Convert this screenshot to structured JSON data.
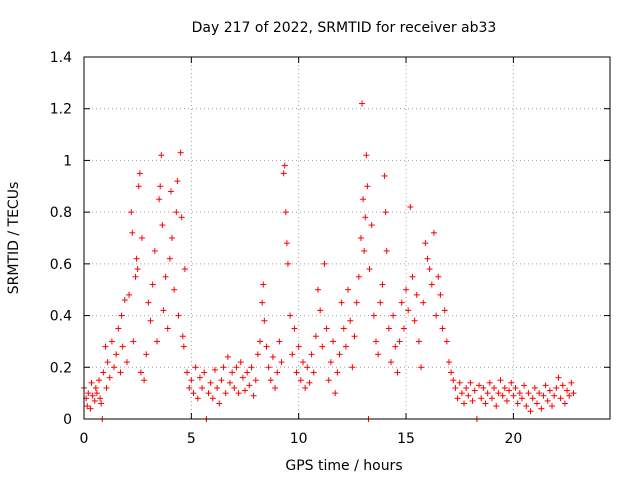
{
  "chart_data": {
    "type": "scatter",
    "title": "Day 217 of 2022, SRMTID for receiver ab33",
    "xlabel": "GPS time / hours",
    "ylabel": "SRMTID / TECUs",
    "xlim": [
      0,
      24.5
    ],
    "ylim": [
      0,
      1.4
    ],
    "xticks": [
      0,
      5,
      10,
      15,
      20
    ],
    "xtick_labels": [
      "0",
      "5",
      "10",
      "15",
      "20"
    ],
    "yticks": [
      0,
      0.2,
      0.4,
      0.6,
      0.8,
      1.0,
      1.2,
      1.4
    ],
    "ytick_labels": [
      "0",
      "0.2",
      "0.4",
      "0.6",
      "0.8",
      "1",
      "1.2",
      "1.4"
    ],
    "grid": true,
    "marker": "+",
    "color": "#ff0000",
    "series": [
      {
        "name": "SRMTID",
        "points": [
          [
            0.0,
            0.12
          ],
          [
            0.1,
            0.08
          ],
          [
            0.15,
            0.05
          ],
          [
            0.2,
            0.1
          ],
          [
            0.3,
            0.04
          ],
          [
            0.35,
            0.14
          ],
          [
            0.4,
            0.09
          ],
          [
            0.5,
            0.07
          ],
          [
            0.55,
            0.12
          ],
          [
            0.6,
            0.1
          ],
          [
            0.7,
            0.15
          ],
          [
            0.75,
            0.08
          ],
          [
            0.8,
            0.06
          ],
          [
            0.85,
            0.0
          ],
          [
            0.9,
            0.18
          ],
          [
            1.0,
            0.28
          ],
          [
            1.05,
            0.12
          ],
          [
            1.1,
            0.22
          ],
          [
            1.2,
            0.16
          ],
          [
            1.3,
            0.3
          ],
          [
            1.4,
            0.2
          ],
          [
            1.5,
            0.25
          ],
          [
            1.6,
            0.35
          ],
          [
            1.7,
            0.18
          ],
          [
            1.75,
            0.4
          ],
          [
            1.8,
            0.28
          ],
          [
            1.9,
            0.46
          ],
          [
            2.0,
            0.22
          ],
          [
            2.1,
            0.48
          ],
          [
            2.2,
            0.8
          ],
          [
            2.25,
            0.72
          ],
          [
            2.3,
            0.3
          ],
          [
            2.4,
            0.55
          ],
          [
            2.45,
            0.62
          ],
          [
            2.5,
            0.58
          ],
          [
            2.55,
            0.9
          ],
          [
            2.6,
            0.95
          ],
          [
            2.65,
            0.18
          ],
          [
            2.7,
            0.7
          ],
          [
            2.8,
            0.15
          ],
          [
            2.9,
            0.25
          ],
          [
            3.0,
            0.45
          ],
          [
            3.1,
            0.38
          ],
          [
            3.2,
            0.52
          ],
          [
            3.3,
            0.65
          ],
          [
            3.4,
            0.3
          ],
          [
            3.5,
            0.85
          ],
          [
            3.55,
            0.9
          ],
          [
            3.6,
            1.02
          ],
          [
            3.65,
            0.75
          ],
          [
            3.7,
            0.42
          ],
          [
            3.8,
            0.55
          ],
          [
            3.9,
            0.35
          ],
          [
            4.0,
            0.62
          ],
          [
            4.05,
            0.88
          ],
          [
            4.1,
            0.7
          ],
          [
            4.2,
            0.5
          ],
          [
            4.3,
            0.8
          ],
          [
            4.35,
            0.92
          ],
          [
            4.4,
            0.4
          ],
          [
            4.5,
            1.03
          ],
          [
            4.55,
            0.78
          ],
          [
            4.6,
            0.32
          ],
          [
            4.65,
            0.28
          ],
          [
            4.7,
            0.58
          ],
          [
            4.8,
            0.18
          ],
          [
            4.9,
            0.12
          ],
          [
            5.0,
            0.15
          ],
          [
            5.1,
            0.1
          ],
          [
            5.2,
            0.2
          ],
          [
            5.3,
            0.08
          ],
          [
            5.4,
            0.16
          ],
          [
            5.5,
            0.12
          ],
          [
            5.6,
            0.18
          ],
          [
            5.7,
            0.0
          ],
          [
            5.8,
            0.1
          ],
          [
            5.9,
            0.14
          ],
          [
            6.0,
            0.08
          ],
          [
            6.1,
            0.19
          ],
          [
            6.2,
            0.12
          ],
          [
            6.3,
            0.06
          ],
          [
            6.4,
            0.15
          ],
          [
            6.5,
            0.2
          ],
          [
            6.6,
            0.1
          ],
          [
            6.7,
            0.24
          ],
          [
            6.8,
            0.14
          ],
          [
            6.9,
            0.18
          ],
          [
            7.0,
            0.12
          ],
          [
            7.1,
            0.2
          ],
          [
            7.2,
            0.1
          ],
          [
            7.3,
            0.22
          ],
          [
            7.4,
            0.16
          ],
          [
            7.5,
            0.11
          ],
          [
            7.6,
            0.18
          ],
          [
            7.7,
            0.13
          ],
          [
            7.8,
            0.2
          ],
          [
            7.9,
            0.09
          ],
          [
            8.0,
            0.15
          ],
          [
            8.1,
            0.25
          ],
          [
            8.2,
            0.3
          ],
          [
            8.3,
            0.45
          ],
          [
            8.35,
            0.52
          ],
          [
            8.4,
            0.38
          ],
          [
            8.5,
            0.28
          ],
          [
            8.6,
            0.2
          ],
          [
            8.7,
            0.15
          ],
          [
            8.8,
            0.24
          ],
          [
            8.9,
            0.12
          ],
          [
            9.0,
            0.18
          ],
          [
            9.1,
            0.3
          ],
          [
            9.2,
            0.22
          ],
          [
            9.3,
            0.95
          ],
          [
            9.35,
            0.98
          ],
          [
            9.4,
            0.8
          ],
          [
            9.45,
            0.68
          ],
          [
            9.5,
            0.6
          ],
          [
            9.6,
            0.4
          ],
          [
            9.7,
            0.25
          ],
          [
            9.8,
            0.35
          ],
          [
            9.9,
            0.18
          ],
          [
            10.0,
            0.28
          ],
          [
            10.1,
            0.15
          ],
          [
            10.2,
            0.22
          ],
          [
            10.3,
            0.12
          ],
          [
            10.4,
            0.2
          ],
          [
            10.5,
            0.14
          ],
          [
            10.6,
            0.25
          ],
          [
            10.7,
            0.18
          ],
          [
            10.8,
            0.32
          ],
          [
            10.9,
            0.5
          ],
          [
            11.0,
            0.42
          ],
          [
            11.1,
            0.28
          ],
          [
            11.2,
            0.6
          ],
          [
            11.3,
            0.35
          ],
          [
            11.4,
            0.15
          ],
          [
            11.5,
            0.22
          ],
          [
            11.6,
            0.3
          ],
          [
            11.7,
            0.1
          ],
          [
            11.8,
            0.18
          ],
          [
            11.9,
            0.25
          ],
          [
            12.0,
            0.45
          ],
          [
            12.1,
            0.35
          ],
          [
            12.2,
            0.28
          ],
          [
            12.3,
            0.5
          ],
          [
            12.4,
            0.38
          ],
          [
            12.5,
            0.2
          ],
          [
            12.6,
            0.32
          ],
          [
            12.7,
            0.45
          ],
          [
            12.8,
            0.55
          ],
          [
            12.9,
            0.7
          ],
          [
            12.95,
            1.22
          ],
          [
            13.0,
            0.85
          ],
          [
            13.05,
            0.65
          ],
          [
            13.1,
            0.78
          ],
          [
            13.15,
            1.02
          ],
          [
            13.2,
            0.9
          ],
          [
            13.25,
            0.0
          ],
          [
            13.3,
            0.58
          ],
          [
            13.4,
            0.75
          ],
          [
            13.5,
            0.4
          ],
          [
            13.6,
            0.3
          ],
          [
            13.7,
            0.25
          ],
          [
            13.8,
            0.45
          ],
          [
            13.9,
            0.52
          ],
          [
            14.0,
            0.94
          ],
          [
            14.05,
            0.8
          ],
          [
            14.1,
            0.65
          ],
          [
            14.2,
            0.35
          ],
          [
            14.3,
            0.22
          ],
          [
            14.4,
            0.4
          ],
          [
            14.5,
            0.28
          ],
          [
            14.6,
            0.18
          ],
          [
            14.7,
            0.3
          ],
          [
            14.8,
            0.45
          ],
          [
            14.9,
            0.35
          ],
          [
            15.0,
            0.5
          ],
          [
            15.1,
            0.42
          ],
          [
            15.2,
            0.82
          ],
          [
            15.3,
            0.55
          ],
          [
            15.4,
            0.38
          ],
          [
            15.5,
            0.48
          ],
          [
            15.6,
            0.3
          ],
          [
            15.7,
            0.2
          ],
          [
            15.8,
            0.45
          ],
          [
            15.9,
            0.68
          ],
          [
            16.0,
            0.62
          ],
          [
            16.1,
            0.58
          ],
          [
            16.2,
            0.52
          ],
          [
            16.3,
            0.72
          ],
          [
            16.4,
            0.4
          ],
          [
            16.5,
            0.55
          ],
          [
            16.6,
            0.48
          ],
          [
            16.7,
            0.35
          ],
          [
            16.8,
            0.42
          ],
          [
            16.9,
            0.3
          ],
          [
            17.0,
            0.22
          ],
          [
            17.1,
            0.18
          ],
          [
            17.2,
            0.15
          ],
          [
            17.3,
            0.12
          ],
          [
            17.4,
            0.08
          ],
          [
            17.5,
            0.14
          ],
          [
            17.6,
            0.1
          ],
          [
            17.7,
            0.06
          ],
          [
            17.8,
            0.12
          ],
          [
            17.9,
            0.09
          ],
          [
            18.0,
            0.14
          ],
          [
            18.1,
            0.07
          ],
          [
            18.2,
            0.11
          ],
          [
            18.3,
            0.0
          ],
          [
            18.4,
            0.13
          ],
          [
            18.5,
            0.08
          ],
          [
            18.6,
            0.12
          ],
          [
            18.7,
            0.06
          ],
          [
            18.8,
            0.1
          ],
          [
            18.9,
            0.14
          ],
          [
            19.0,
            0.08
          ],
          [
            19.1,
            0.12
          ],
          [
            19.2,
            0.05
          ],
          [
            19.3,
            0.1
          ],
          [
            19.4,
            0.15
          ],
          [
            19.5,
            0.09
          ],
          [
            19.6,
            0.12
          ],
          [
            19.7,
            0.07
          ],
          [
            19.8,
            0.11
          ],
          [
            19.9,
            0.14
          ],
          [
            20.0,
            0.09
          ],
          [
            20.1,
            0.12
          ],
          [
            20.2,
            0.06
          ],
          [
            20.3,
            0.1
          ],
          [
            20.4,
            0.08
          ],
          [
            20.5,
            0.13
          ],
          [
            20.6,
            0.05
          ],
          [
            20.7,
            0.1
          ],
          [
            20.8,
            0.03
          ],
          [
            20.9,
            0.08
          ],
          [
            21.0,
            0.12
          ],
          [
            21.1,
            0.06
          ],
          [
            21.2,
            0.1
          ],
          [
            21.3,
            0.04
          ],
          [
            21.4,
            0.09
          ],
          [
            21.5,
            0.13
          ],
          [
            21.6,
            0.07
          ],
          [
            21.7,
            0.11
          ],
          [
            21.8,
            0.05
          ],
          [
            21.9,
            0.09
          ],
          [
            22.0,
            0.12
          ],
          [
            22.1,
            0.16
          ],
          [
            22.2,
            0.08
          ],
          [
            22.3,
            0.13
          ],
          [
            22.4,
            0.06
          ],
          [
            22.5,
            0.11
          ],
          [
            22.6,
            0.09
          ],
          [
            22.7,
            0.14
          ],
          [
            22.8,
            0.1
          ]
        ]
      }
    ]
  }
}
